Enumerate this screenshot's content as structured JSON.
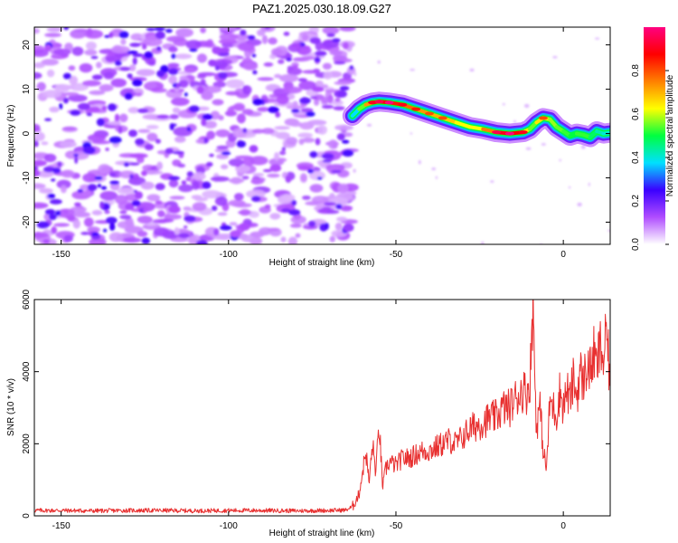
{
  "title": "PAZ1.2025.030.18.09.G27",
  "chart_data": [
    {
      "type": "heatmap",
      "xlabel": "Height of straight line (km)",
      "ylabel": "Frequency (Hz)",
      "xlim": [
        -158,
        14
      ],
      "ylim": [
        -25,
        24
      ],
      "xticks": [
        -150,
        -100,
        -50,
        0
      ],
      "yticks": [
        -20,
        -10,
        0,
        10,
        20
      ],
      "noise_region_x": [
        -158,
        -63
      ],
      "ridge": {
        "x": [
          -63,
          -61,
          -59,
          -57,
          -55,
          -52,
          -48,
          -44,
          -40,
          -36,
          -32,
          -28,
          -24,
          -20,
          -16,
          -12,
          -10,
          -8,
          -6,
          -4,
          -2,
          0,
          2,
          4,
          6,
          8,
          10,
          12,
          14
        ],
        "y": [
          4,
          5.5,
          6.5,
          7,
          7.2,
          7,
          6.5,
          5.5,
          4.5,
          3.5,
          2.5,
          1.5,
          1,
          0.3,
          0,
          0.3,
          1,
          2.5,
          3.5,
          3.2,
          1.5,
          0.5,
          -0.5,
          0,
          -0.3,
          -0.8,
          0.5,
          0,
          0.2
        ],
        "amplitude": [
          0.3,
          0.45,
          0.65,
          0.8,
          0.85,
          0.9,
          0.8,
          0.75,
          0.7,
          0.7,
          0.65,
          0.6,
          0.65,
          0.85,
          0.95,
          0.8,
          0.5,
          0.6,
          0.7,
          0.6,
          0.55,
          0.55,
          0.5,
          0.5,
          0.55,
          0.5,
          0.45,
          0.4,
          0.4
        ]
      },
      "colorbar": {
        "label": "Normalized spectral amplitude",
        "range": [
          0,
          1
        ],
        "ticks": [
          0.0,
          0.2,
          0.4,
          0.6,
          0.8
        ],
        "tick_labels": [
          "0.0",
          "0.2",
          "0.4",
          "0.6",
          "0.8"
        ],
        "colors": [
          "#ffffff",
          "#b04dff",
          "#3a00ff",
          "#00e0ff",
          "#00ff40",
          "#ffff00",
          "#ff8000",
          "#ff0000",
          "#ff0080"
        ]
      }
    },
    {
      "type": "line",
      "xlabel": "Height of straight line (km)",
      "ylabel": "SNR (10 * v/v)",
      "xlim": [
        -158,
        14
      ],
      "ylim": [
        0,
        6000
      ],
      "xticks": [
        -150,
        -100,
        -50,
        0
      ],
      "yticks": [
        0,
        2000,
        4000,
        6000
      ],
      "color": "#e83030",
      "series": [
        {
          "x": [
            -158,
            -150,
            -140,
            -130,
            -120,
            -110,
            -100,
            -90,
            -80,
            -70,
            -65,
            -63,
            -61,
            -59,
            -58,
            -57,
            -56,
            -55,
            -54,
            -53,
            -52,
            -50,
            -48,
            -46,
            -44,
            -42,
            -40,
            -38,
            -36,
            -34,
            -32,
            -30,
            -28,
            -26,
            -24,
            -22,
            -20,
            -18,
            -16,
            -14,
            -12,
            -11,
            -10,
            -9,
            -8.5,
            -8,
            -7,
            -6,
            -5,
            -4,
            -3,
            -2,
            -1,
            0,
            1,
            2,
            3,
            4,
            5,
            6,
            7,
            8,
            9,
            10,
            11,
            12,
            13,
            14
          ],
          "values": [
            150,
            150,
            140,
            150,
            150,
            140,
            150,
            150,
            140,
            150,
            160,
            250,
            600,
            1800,
            900,
            2000,
            1200,
            2550,
            800,
            1300,
            1500,
            1400,
            1600,
            1600,
            1700,
            1800,
            1800,
            1900,
            2000,
            2100,
            2000,
            2200,
            2400,
            2500,
            2600,
            2700,
            2750,
            3000,
            3000,
            3300,
            3500,
            3400,
            3700,
            6000,
            3800,
            2400,
            3100,
            1800,
            1300,
            3200,
            3000,
            2800,
            3500,
            3000,
            3500,
            3200,
            3800,
            3300,
            4000,
            3700,
            4200,
            4000,
            4500,
            4100,
            4700,
            4300,
            5100,
            3500
          ]
        }
      ]
    }
  ]
}
